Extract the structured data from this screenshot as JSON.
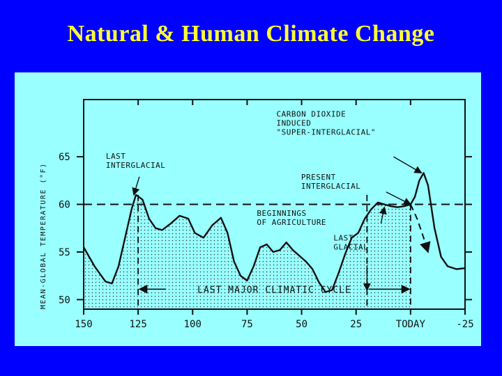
{
  "slide": {
    "title": "Natural & Human Climate Change"
  },
  "colors": {
    "background": "#0000ff",
    "title": "#ffff33",
    "panel": "#99ffff",
    "ink": "#111111"
  },
  "chart_data": {
    "type": "line",
    "title": "",
    "xlabel": "",
    "ylabel": "MEAN-GLOBAL TEMPERATURE (°F)",
    "x_ticks": [
      150,
      125,
      100,
      75,
      50,
      25,
      0,
      -25
    ],
    "x_tick_labels": [
      "150",
      "125",
      "100",
      "75",
      "50",
      "25",
      "TODAY",
      "-25"
    ],
    "y_ticks": [
      50,
      55,
      60,
      65
    ],
    "xlim": [
      150,
      -25
    ],
    "ylim": [
      49,
      71
    ],
    "series": [
      {
        "name": "",
        "x": [
          150,
          145,
          140,
          137,
          134,
          131,
          128,
          126,
          123,
          120,
          117,
          114,
          110,
          106,
          102,
          99,
          95,
          91,
          87,
          84,
          81,
          78,
          75,
          72,
          69,
          66,
          63,
          60,
          57,
          54,
          51,
          48,
          45,
          42,
          39,
          36,
          33,
          30,
          27,
          24,
          21,
          18,
          15,
          12,
          9,
          6,
          3,
          0
        ],
        "y": [
          55.5,
          53.5,
          51.9,
          51.7,
          53.5,
          56.5,
          59.5,
          61.0,
          60.5,
          58.5,
          57.5,
          57.3,
          58.0,
          58.8,
          58.5,
          57.0,
          56.5,
          57.8,
          58.6,
          57.0,
          54.0,
          52.5,
          52.0,
          53.5,
          55.5,
          55.8,
          55.0,
          55.2,
          56.0,
          55.2,
          54.6,
          54.0,
          53.2,
          51.8,
          50.8,
          51.0,
          52.8,
          54.8,
          56.5,
          57.0,
          58.5,
          59.5,
          60.2,
          60.0,
          59.8,
          59.7,
          59.8,
          60.0
        ]
      },
      {
        "name": "",
        "x": [
          0,
          -2,
          -4,
          -6,
          -8,
          -11,
          -14,
          -17,
          -21,
          -25
        ],
        "y": [
          60.0,
          60.8,
          62.5,
          63.3,
          62.0,
          57.5,
          54.5,
          53.5,
          53.2,
          53.3
        ]
      },
      {
        "name": "",
        "style": "dashed",
        "x": [
          0,
          -3,
          -6,
          -8
        ],
        "y": [
          60.0,
          58.5,
          56.5,
          55.0
        ]
      }
    ],
    "reference_lines": [
      {
        "axis": "y",
        "value": 60,
        "style": "dashed"
      },
      {
        "axis": "x",
        "value": 0,
        "style": "dashed"
      },
      {
        "axis": "x",
        "value": 125,
        "style": "dashed"
      },
      {
        "axis": "x",
        "value": 20,
        "style": "dashed"
      }
    ],
    "shaded_region": {
      "from_x": 150,
      "to_x": 0,
      "pattern": "dots"
    },
    "annotations": [
      {
        "lines": [
          "CARBON DIOXIDE",
          "INDUCED",
          "\"SUPER-INTERGLACIAL\""
        ],
        "target_x": -5,
        "target_y": 63.3
      },
      {
        "lines": [
          "LAST",
          "INTERGLACIAL"
        ],
        "target_x": 127,
        "target_y": 61
      },
      {
        "lines": [
          "PRESENT",
          "INTERGLACIAL"
        ],
        "target_x": 0,
        "target_y": 60
      },
      {
        "lines": [
          "BEGINNINGS",
          "OF AGRICULTURE"
        ],
        "target_x": 12,
        "target_y": 59.7
      },
      {
        "lines": [
          "LAST",
          "GLACIAL"
        ],
        "target_x": 20,
        "target_y": 51
      }
    ],
    "span_label": {
      "text": "LAST MAJOR CLIMATIC CYCLE",
      "from_x": 125,
      "to_x": 0
    },
    "grid": false,
    "legend": "none"
  }
}
